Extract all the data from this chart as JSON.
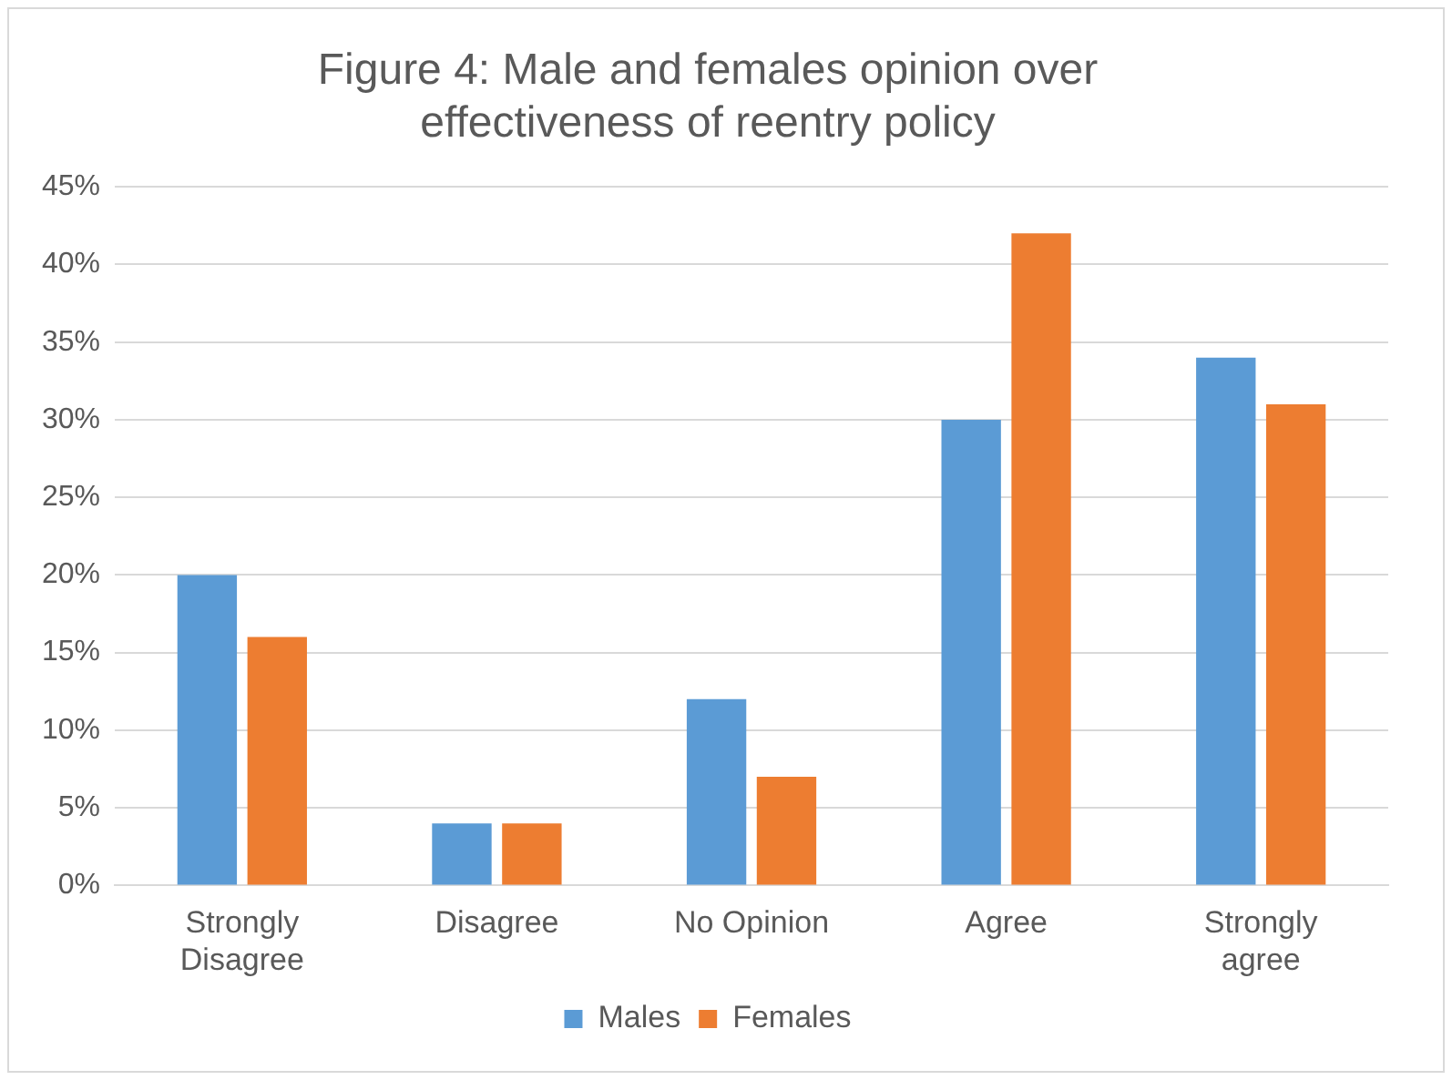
{
  "chart_data": {
    "type": "bar",
    "title": "Figure 4: Male and females opinion over effectiveness of reentry policy",
    "categories": [
      "Strongly Disagree",
      "Disagree",
      "No Opinion",
      "Agree",
      "Strongly agree"
    ],
    "series": [
      {
        "name": "Males",
        "color": "#5b9bd5",
        "values": [
          20,
          4,
          12,
          30,
          34
        ]
      },
      {
        "name": "Females",
        "color": "#ed7d31",
        "values": [
          16,
          4,
          7,
          42,
          31
        ]
      }
    ],
    "ylim": [
      0,
      45
    ],
    "yticks": [
      {
        "value": 0,
        "label": "0%"
      },
      {
        "value": 5,
        "label": "5%"
      },
      {
        "value": 10,
        "label": "10%"
      },
      {
        "value": 15,
        "label": "15%"
      },
      {
        "value": 20,
        "label": "20%"
      },
      {
        "value": 25,
        "label": "25%"
      },
      {
        "value": 30,
        "label": "30%"
      },
      {
        "value": 35,
        "label": "35%"
      },
      {
        "value": 40,
        "label": "40%"
      },
      {
        "value": 45,
        "label": "45%"
      }
    ],
    "grid": "y",
    "legend": "bottom"
  }
}
